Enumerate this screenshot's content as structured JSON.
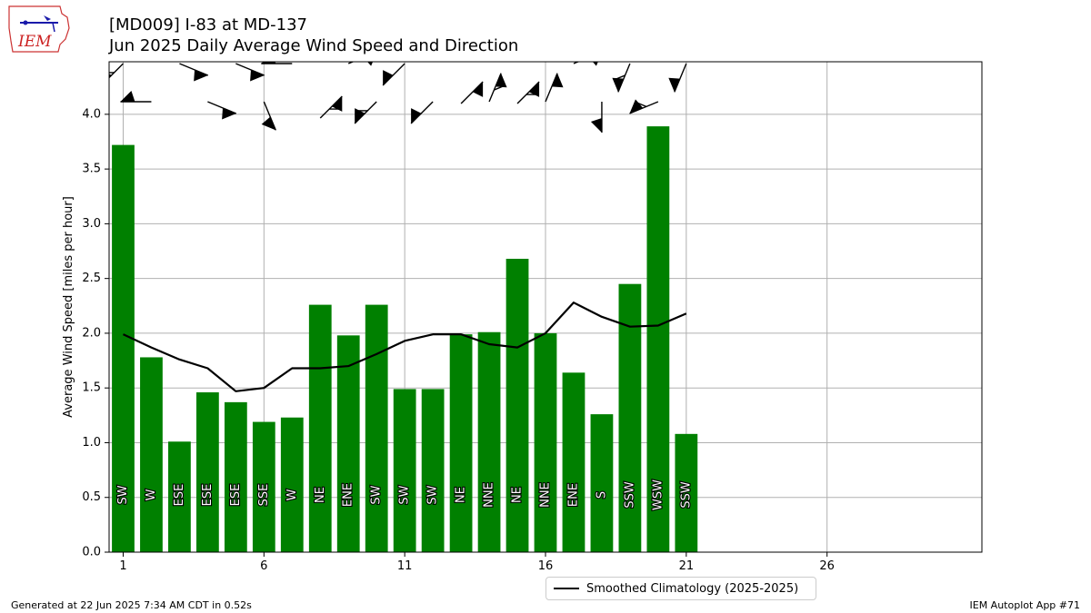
{
  "header": {
    "title_line1": "[MD009] I-83 at MD-137",
    "title_line2": "Jun 2025 Daily Average Wind Speed and Direction"
  },
  "logo": {
    "text": "IEM"
  },
  "footer": {
    "generated": "Generated at 22 Jun 2025 7:34 AM CDT in 0.52s",
    "app": "IEM Autoplot App #71"
  },
  "legend": {
    "label": "Smoothed Climatology (2025-2025)"
  },
  "colors": {
    "bar": "#008000",
    "line": "#000000",
    "grid": "#b0b0b0"
  },
  "chart_data": {
    "type": "bar",
    "ylabel": "Average Wind Speed [miles per hour]",
    "xlabel": "",
    "xlim": [
      0.5,
      31.5
    ],
    "ylim": [
      0,
      4.48
    ],
    "xticks": [
      1,
      6,
      11,
      16,
      21,
      26
    ],
    "yticks": [
      0.0,
      0.5,
      1.0,
      1.5,
      2.0,
      2.5,
      3.0,
      3.5,
      4.0
    ],
    "grid": true,
    "legend_position": "bottom-center",
    "days": [
      1,
      2,
      3,
      4,
      5,
      6,
      7,
      8,
      9,
      10,
      11,
      12,
      13,
      14,
      15,
      16,
      17,
      18,
      19,
      20,
      21
    ],
    "speed": [
      3.72,
      1.78,
      1.01,
      1.46,
      1.37,
      1.19,
      1.23,
      2.26,
      1.98,
      2.26,
      1.49,
      1.49,
      1.99,
      2.01,
      2.68,
      2.0,
      1.64,
      1.26,
      2.45,
      3.89,
      1.08
    ],
    "direction_labels": [
      "SW",
      "W",
      "ESE",
      "ESE",
      "ESE",
      "SSE",
      "W",
      "NE",
      "ENE",
      "SW",
      "SW",
      "SW",
      "NE",
      "NNE",
      "NE",
      "NNE",
      "ENE",
      "S",
      "SSW",
      "WSW",
      "SSW"
    ],
    "direction_deg": [
      225,
      270,
      112.5,
      112.5,
      112.5,
      157.5,
      270,
      45,
      67.5,
      225,
      225,
      225,
      45,
      22.5,
      45,
      22.5,
      67.5,
      180,
      202.5,
      247.5,
      202.5
    ],
    "smoothed_climatology": {
      "name": "Smoothed Climatology (2025-2025)",
      "x": [
        1,
        2,
        3,
        4,
        5,
        6,
        7,
        8,
        9,
        10,
        11,
        12,
        13,
        14,
        15,
        16,
        17,
        18,
        19,
        20,
        21
      ],
      "y": [
        1.99,
        1.87,
        1.76,
        1.68,
        1.47,
        1.5,
        1.68,
        1.68,
        1.7,
        1.81,
        1.93,
        1.99,
        1.99,
        1.9,
        1.87,
        2.0,
        2.28,
        2.15,
        2.06,
        2.07,
        2.18
      ]
    }
  }
}
